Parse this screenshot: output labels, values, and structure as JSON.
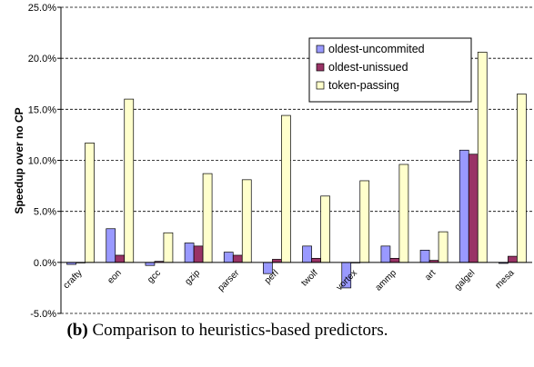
{
  "chart_data": {
    "type": "bar",
    "ylabel": "Speedup over no CP",
    "xlabel": "",
    "ylim": [
      -5,
      25
    ],
    "yticks": [
      -5,
      0,
      5,
      10,
      15,
      20,
      25
    ],
    "ytick_labels": [
      "-5.0%",
      "0.0%",
      "5.0%",
      "10.0%",
      "15.0%",
      "20.0%",
      "25.0%"
    ],
    "grid": "horizontal dashed",
    "legend_position": "top-right",
    "categories": [
      "crafty",
      "eon",
      "gcc",
      "gzip",
      "parser",
      "perl",
      "twolf",
      "vortex",
      "ammp",
      "art",
      "galgel",
      "mesa"
    ],
    "series": [
      {
        "name": "oldest-uncommited",
        "color": "#9999FF",
        "values": [
          -0.2,
          3.3,
          -0.3,
          1.9,
          1.0,
          -1.1,
          1.6,
          -2.5,
          1.6,
          1.2,
          11.0,
          -0.1
        ]
      },
      {
        "name": "oldest-unissued",
        "color": "#993366",
        "values": [
          0.0,
          0.7,
          0.1,
          1.6,
          0.7,
          0.3,
          0.4,
          0.0,
          0.4,
          0.2,
          10.6,
          0.6
        ]
      },
      {
        "name": "token-passing",
        "color": "#FFFFCC",
        "values": [
          11.7,
          16.0,
          2.9,
          8.7,
          8.1,
          14.4,
          6.5,
          8.0,
          9.6,
          3.0,
          20.6,
          16.5
        ]
      }
    ]
  },
  "caption": {
    "label": "(b)",
    "text": " Comparison to heuristics-based predictors."
  }
}
